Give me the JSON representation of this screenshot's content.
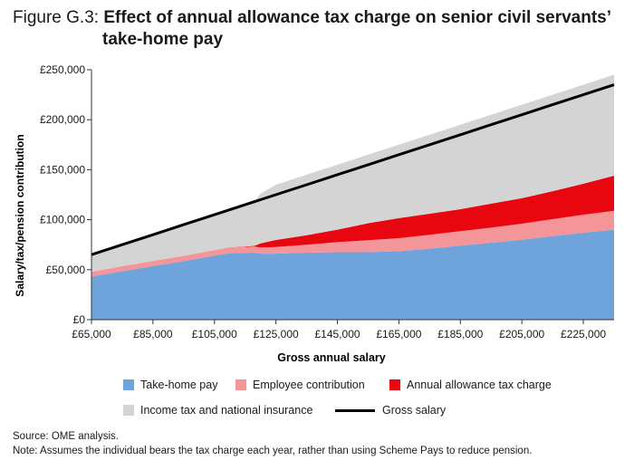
{
  "figure": {
    "label": "Figure G.3:",
    "title_line1": "Effect of annual allowance tax charge on senior civil servants’",
    "title_line2": "take-home pay"
  },
  "chart_data": {
    "type": "area",
    "stacked": true,
    "xlabel": "Gross annual salary",
    "ylabel": "Salary/tax/pension contribution",
    "x": [
      65000,
      75000,
      85000,
      95000,
      105000,
      110000,
      118000,
      120000,
      125000,
      135000,
      145000,
      155000,
      165000,
      175000,
      185000,
      195000,
      205000,
      215000,
      225000,
      235000
    ],
    "xlim": [
      65000,
      235000
    ],
    "ylim": [
      0,
      250000
    ],
    "x_ticks": [
      65000,
      85000,
      105000,
      125000,
      145000,
      165000,
      185000,
      205000,
      225000
    ],
    "x_tick_labels": [
      "£65,000",
      "£85,000",
      "£105,000",
      "£125,000",
      "£145,000",
      "£165,000",
      "£185,000",
      "£205,000",
      "£225,000"
    ],
    "y_ticks": [
      0,
      50000,
      100000,
      150000,
      200000,
      250000
    ],
    "y_tick_labels": [
      "£0",
      "£50,000",
      "£100,000",
      "£150,000",
      "£200,000",
      "£250,000"
    ],
    "series": [
      {
        "name": "Take-home pay",
        "color": "#6fa3dc",
        "values": [
          43000,
          48500,
          53500,
          58500,
          64000,
          66500,
          67000,
          66000,
          66000,
          67000,
          67500,
          67500,
          68500,
          71000,
          74000,
          77000,
          80000,
          83500,
          87000,
          90000
        ]
      },
      {
        "name": "Employee contribution",
        "color": "#f4959a",
        "values": [
          4800,
          5000,
          5200,
          5400,
          5700,
          5900,
          6200,
          6300,
          6700,
          8000,
          10000,
          12000,
          13000,
          14000,
          14500,
          15000,
          16000,
          17000,
          18000,
          19000
        ]
      },
      {
        "name": "Annual allowance tax charge",
        "color": "#e8060f",
        "values": [
          0,
          0,
          0,
          0,
          0,
          0,
          600,
          4000,
          7000,
          9500,
          12500,
          17000,
          20000,
          21000,
          22000,
          24000,
          25500,
          28000,
          31000,
          35000
        ]
      },
      {
        "name": "Income tax and national insurance",
        "color": "#d4d4d4",
        "values": [
          17200,
          21500,
          26300,
          31100,
          35300,
          37600,
          44200,
          49700,
          55300,
          60500,
          65000,
          68500,
          73500,
          79000,
          84500,
          89000,
          93500,
          96500,
          99000,
          101000
        ]
      }
    ],
    "line": {
      "name": "Gross salary",
      "color": "#000000",
      "values": [
        65000,
        75000,
        85000,
        95000,
        105000,
        110000,
        118000,
        120000,
        125000,
        135000,
        145000,
        155000,
        165000,
        175000,
        185000,
        195000,
        205000,
        215000,
        225000,
        235000
      ]
    }
  },
  "legend": {
    "items": [
      {
        "label": "Take-home pay",
        "color": "#6fa3dc"
      },
      {
        "label": "Employee contribution",
        "color": "#f4959a"
      },
      {
        "label": "Annual allowance tax charge",
        "color": "#e8060f"
      },
      {
        "label": "Income tax and national insurance",
        "color": "#d4d4d4"
      }
    ],
    "line_label": "Gross salary"
  },
  "footer": {
    "source": "Source:  OME analysis.",
    "note": "Note:  Assumes the individual bears the tax charge each year, rather than using Scheme Pays to reduce pension."
  }
}
